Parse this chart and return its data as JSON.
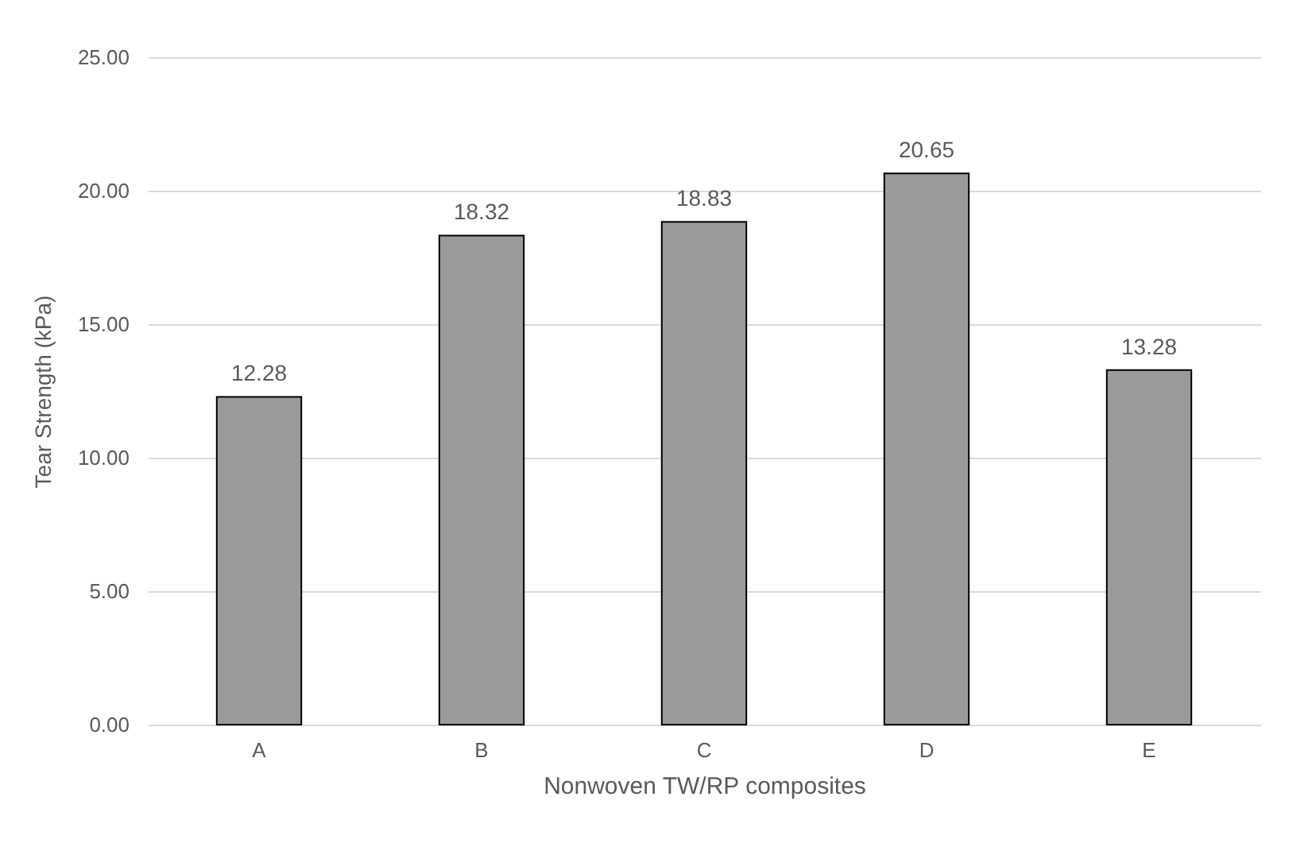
{
  "chart_data": {
    "type": "bar",
    "xlabel": "Nonwoven TW/RP composites",
    "ylabel": "Tear Strength (kPa)",
    "categories": [
      "A",
      "B",
      "C",
      "D",
      "E"
    ],
    "values": [
      12.28,
      18.32,
      18.83,
      20.65,
      13.28
    ],
    "color": "#9a9a9a",
    "ylim": [
      0,
      25
    ],
    "yticks": [
      {
        "value": 0,
        "label": "0.00"
      },
      {
        "value": 5,
        "label": "5.00"
      },
      {
        "value": 10,
        "label": "10.00"
      },
      {
        "value": 15,
        "label": "15.00"
      },
      {
        "value": 20,
        "label": "20.00"
      },
      {
        "value": 25,
        "label": "25.00"
      }
    ],
    "grid": "y",
    "data_labels": true
  }
}
